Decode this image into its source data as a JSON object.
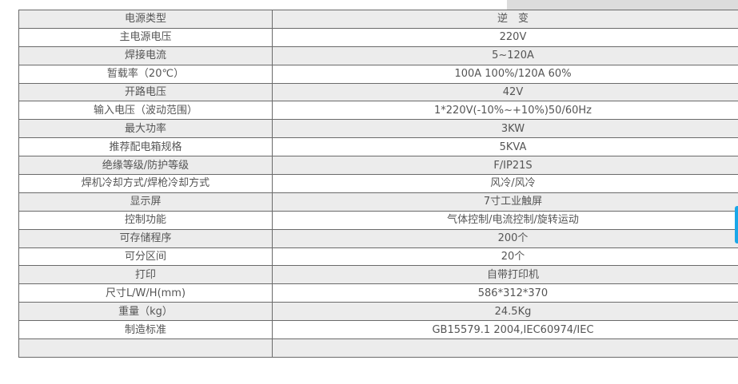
{
  "spec_table": {
    "rows": [
      {
        "label": "电源类型",
        "value": "逆　变"
      },
      {
        "label": "主电源电压",
        "value": "220V"
      },
      {
        "label": "焊接电流",
        "value": "5~120A"
      },
      {
        "label": "暂载率（20℃）",
        "value": "100A 100%/120A 60%"
      },
      {
        "label": "开路电压",
        "value": "42V"
      },
      {
        "label": "输入电压（波动范围）",
        "value": "1*220V(-10%~+10%)50/60Hz"
      },
      {
        "label": "最大功率",
        "value": "3KW"
      },
      {
        "label": "推荐配电箱规格",
        "value": "5KVA"
      },
      {
        "label": "绝缘等级/防护等级",
        "value": "F/IP21S"
      },
      {
        "label": "焊机冷却方式/焊枪冷却方式",
        "value": "风冷/风冷"
      },
      {
        "label": "显示屏",
        "value": "7寸工业触屏"
      },
      {
        "label": "控制功能",
        "value": "气体控制/电流控制/旋转运动"
      },
      {
        "label": "可存储程序",
        "value": "200个"
      },
      {
        "label": "可分区间",
        "value": "20个"
      },
      {
        "label": "打印",
        "value": "自带打印机"
      },
      {
        "label": "尺寸L/W/H(mm)",
        "value": "586*312*370"
      },
      {
        "label": "重量（kg）",
        "value": "24.5Kg"
      },
      {
        "label": "制造标准",
        "value": "GB15579.1 2004,IEC60974/IEC"
      },
      {
        "label": "",
        "value": ""
      }
    ]
  },
  "colors": {
    "row_alt": "#ececec",
    "border": "#6a6a6a",
    "side_tab": "#1aa7e8"
  }
}
